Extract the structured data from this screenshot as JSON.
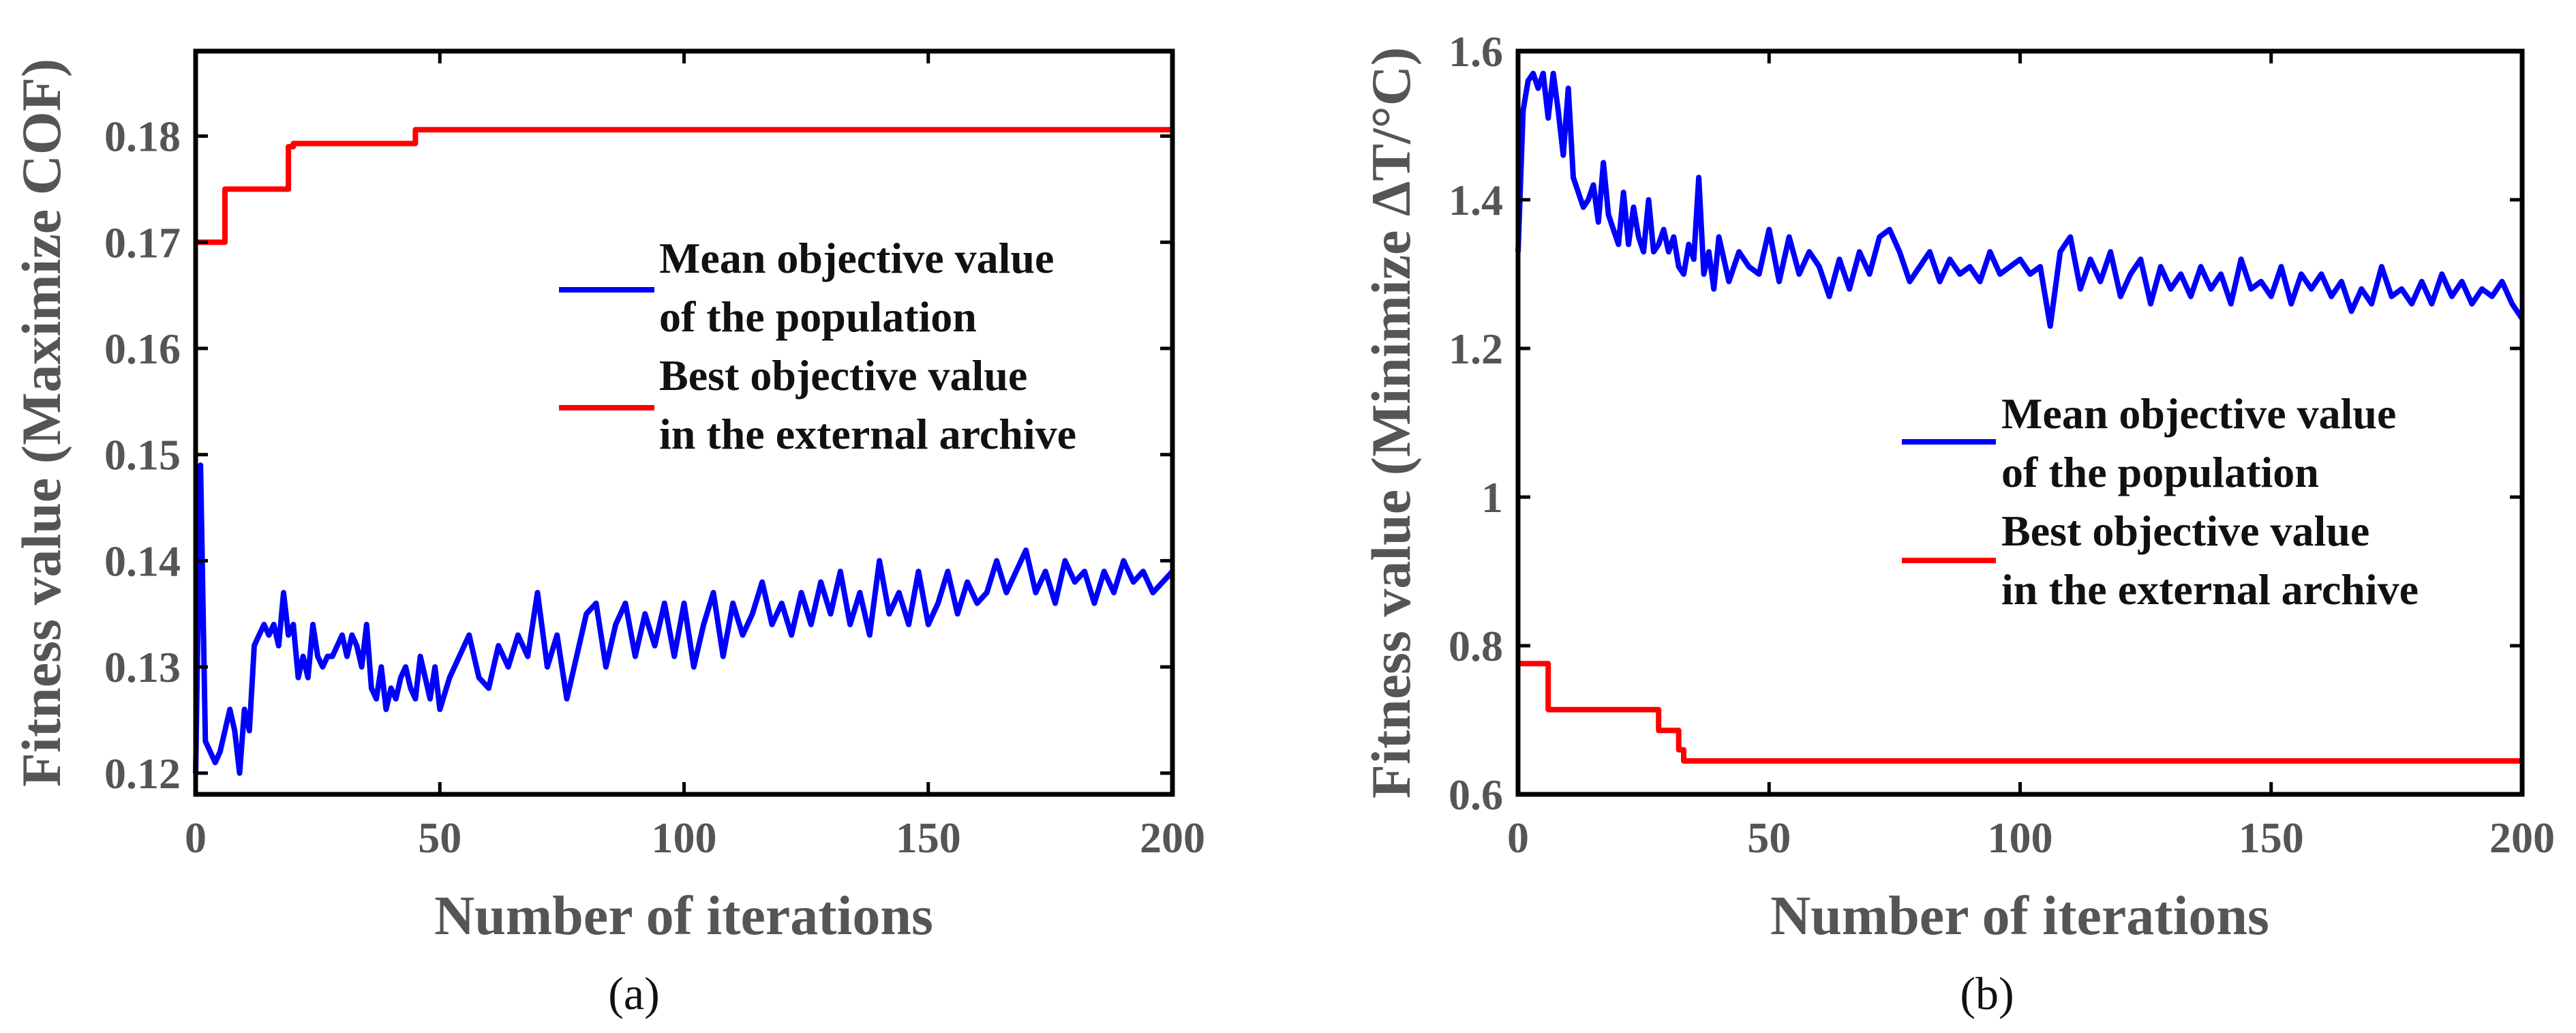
{
  "chart_data": [
    {
      "type": "line",
      "panel_label": "(a)",
      "xlabel": "Number of iterations",
      "ylabel": "Fitness value (Maximize COF)",
      "xlim": [
        0,
        200
      ],
      "ylim": [
        0.118,
        0.188
      ],
      "xticks": [
        0,
        50,
        100,
        150,
        200
      ],
      "xtick_labels": [
        "0",
        "50",
        "100",
        "150",
        "200"
      ],
      "yticks": [
        0.12,
        0.13,
        0.14,
        0.15,
        0.16,
        0.17,
        0.18
      ],
      "ytick_labels": [
        "0.12",
        "0.13",
        "0.14",
        "0.15",
        "0.16",
        "0.17",
        "0.18"
      ],
      "grid": false,
      "legend_position": "center-right",
      "series": [
        {
          "name_line1": "Mean objective value",
          "name_line2": "of the population",
          "color": "#0000ff",
          "x": [
            0,
            1,
            2,
            3,
            4,
            5,
            6,
            7,
            8,
            9,
            10,
            11,
            12,
            13,
            14,
            15,
            16,
            17,
            18,
            19,
            20,
            21,
            22,
            23,
            24,
            25,
            26,
            27,
            28,
            29,
            30,
            31,
            32,
            33,
            34,
            35,
            36,
            37,
            38,
            39,
            40,
            41,
            42,
            43,
            44,
            45,
            46,
            47,
            48,
            49,
            50,
            52,
            54,
            56,
            58,
            60,
            62,
            64,
            66,
            68,
            70,
            72,
            74,
            76,
            78,
            80,
            82,
            84,
            86,
            88,
            90,
            92,
            94,
            96,
            98,
            100,
            102,
            104,
            106,
            108,
            110,
            112,
            114,
            116,
            118,
            120,
            122,
            124,
            126,
            128,
            130,
            132,
            134,
            136,
            138,
            140,
            142,
            144,
            146,
            148,
            150,
            152,
            154,
            156,
            158,
            160,
            162,
            164,
            166,
            168,
            170,
            172,
            174,
            176,
            178,
            180,
            182,
            184,
            186,
            188,
            190,
            192,
            194,
            196,
            198,
            200
          ],
          "values": [
            0.12,
            0.149,
            0.123,
            0.122,
            0.121,
            0.122,
            0.124,
            0.126,
            0.124,
            0.12,
            0.126,
            0.124,
            0.132,
            0.133,
            0.134,
            0.133,
            0.134,
            0.132,
            0.137,
            0.133,
            0.134,
            0.129,
            0.131,
            0.129,
            0.134,
            0.131,
            0.13,
            0.131,
            0.131,
            0.132,
            0.133,
            0.131,
            0.133,
            0.132,
            0.13,
            0.134,
            0.128,
            0.127,
            0.13,
            0.126,
            0.128,
            0.127,
            0.129,
            0.13,
            0.128,
            0.127,
            0.131,
            0.129,
            0.127,
            0.13,
            0.126,
            0.129,
            0.131,
            0.133,
            0.129,
            0.128,
            0.132,
            0.13,
            0.133,
            0.131,
            0.137,
            0.13,
            0.133,
            0.127,
            0.131,
            0.135,
            0.136,
            0.13,
            0.134,
            0.136,
            0.131,
            0.135,
            0.132,
            0.136,
            0.131,
            0.136,
            0.13,
            0.134,
            0.137,
            0.131,
            0.136,
            0.133,
            0.135,
            0.138,
            0.134,
            0.136,
            0.133,
            0.137,
            0.134,
            0.138,
            0.135,
            0.139,
            0.134,
            0.137,
            0.133,
            0.14,
            0.135,
            0.137,
            0.134,
            0.139,
            0.134,
            0.136,
            0.139,
            0.135,
            0.138,
            0.136,
            0.137,
            0.14,
            0.137,
            0.139,
            0.141,
            0.137,
            0.139,
            0.136,
            0.14,
            0.138,
            0.139,
            0.136,
            0.139,
            0.137,
            0.14,
            0.138,
            0.139,
            0.137,
            0.138,
            0.139
          ]
        },
        {
          "name_line1": "Best objective value",
          "name_line2": "in the external archive",
          "color": "#ff0000",
          "x": [
            0,
            1,
            6,
            6,
            7,
            7,
            19,
            19,
            20,
            20,
            45,
            45,
            46,
            46,
            200
          ],
          "values": [
            0.17,
            0.17,
            0.17,
            0.175,
            0.175,
            0.175,
            0.175,
            0.179,
            0.179,
            0.1793,
            0.1793,
            0.1806,
            0.1806,
            0.1806,
            0.1806
          ]
        }
      ]
    },
    {
      "type": "line",
      "panel_label": "(b)",
      "xlabel": "Number of iterations",
      "ylabel": "Fitness value (Minimize ΔT/°C)",
      "xlim": [
        0,
        200
      ],
      "ylim": [
        0.6,
        1.6
      ],
      "xticks": [
        0,
        50,
        100,
        150,
        200
      ],
      "xtick_labels": [
        "0",
        "50",
        "100",
        "150",
        "200"
      ],
      "yticks": [
        0.6,
        0.8,
        1.0,
        1.2,
        1.4,
        1.6
      ],
      "ytick_labels": [
        "0.6",
        "0.8",
        "1",
        "1.2",
        "1.4",
        "1.6"
      ],
      "grid": false,
      "legend_position": "center-right",
      "series": [
        {
          "name_line1": "Mean objective value",
          "name_line2": "of the population",
          "color": "#0000ff",
          "x": [
            0,
            1,
            2,
            3,
            4,
            5,
            6,
            7,
            8,
            9,
            10,
            11,
            12,
            13,
            14,
            15,
            16,
            17,
            18,
            19,
            20,
            21,
            22,
            23,
            24,
            25,
            26,
            27,
            28,
            29,
            30,
            31,
            32,
            33,
            34,
            35,
            36,
            37,
            38,
            39,
            40,
            42,
            44,
            46,
            48,
            50,
            52,
            54,
            56,
            58,
            60,
            62,
            64,
            66,
            68,
            70,
            72,
            74,
            76,
            78,
            80,
            82,
            84,
            86,
            88,
            90,
            92,
            94,
            96,
            98,
            100,
            102,
            104,
            106,
            108,
            110,
            112,
            114,
            116,
            118,
            120,
            122,
            124,
            126,
            128,
            130,
            132,
            134,
            136,
            138,
            140,
            142,
            144,
            146,
            148,
            150,
            152,
            154,
            156,
            158,
            160,
            162,
            164,
            166,
            168,
            170,
            172,
            174,
            176,
            178,
            180,
            182,
            184,
            186,
            188,
            190,
            192,
            194,
            196,
            198,
            200
          ],
          "values": [
            1.33,
            1.52,
            1.56,
            1.57,
            1.55,
            1.57,
            1.51,
            1.57,
            1.52,
            1.46,
            1.55,
            1.43,
            1.41,
            1.39,
            1.4,
            1.42,
            1.37,
            1.45,
            1.38,
            1.36,
            1.34,
            1.41,
            1.34,
            1.39,
            1.35,
            1.33,
            1.4,
            1.33,
            1.34,
            1.36,
            1.33,
            1.35,
            1.31,
            1.3,
            1.34,
            1.32,
            1.43,
            1.3,
            1.33,
            1.28,
            1.35,
            1.29,
            1.33,
            1.31,
            1.3,
            1.36,
            1.29,
            1.35,
            1.3,
            1.33,
            1.31,
            1.27,
            1.32,
            1.28,
            1.33,
            1.3,
            1.35,
            1.36,
            1.33,
            1.29,
            1.31,
            1.33,
            1.29,
            1.32,
            1.3,
            1.31,
            1.29,
            1.33,
            1.3,
            1.31,
            1.32,
            1.3,
            1.31,
            1.23,
            1.33,
            1.35,
            1.28,
            1.32,
            1.29,
            1.33,
            1.27,
            1.3,
            1.32,
            1.26,
            1.31,
            1.28,
            1.3,
            1.27,
            1.31,
            1.28,
            1.3,
            1.26,
            1.32,
            1.28,
            1.29,
            1.27,
            1.31,
            1.26,
            1.3,
            1.28,
            1.3,
            1.27,
            1.29,
            1.25,
            1.28,
            1.26,
            1.31,
            1.27,
            1.28,
            1.26,
            1.29,
            1.26,
            1.3,
            1.27,
            1.29,
            1.26,
            1.28,
            1.27,
            1.29,
            1.26,
            1.24
          ]
        },
        {
          "name_line1": "Best objective value",
          "name_line2": "in the external archive",
          "color": "#ff0000",
          "x": [
            0,
            6,
            6,
            28,
            28,
            32,
            32,
            33,
            33,
            200
          ],
          "values": [
            0.776,
            0.776,
            0.714,
            0.714,
            0.686,
            0.686,
            0.66,
            0.66,
            0.645,
            0.645
          ]
        }
      ]
    }
  ]
}
